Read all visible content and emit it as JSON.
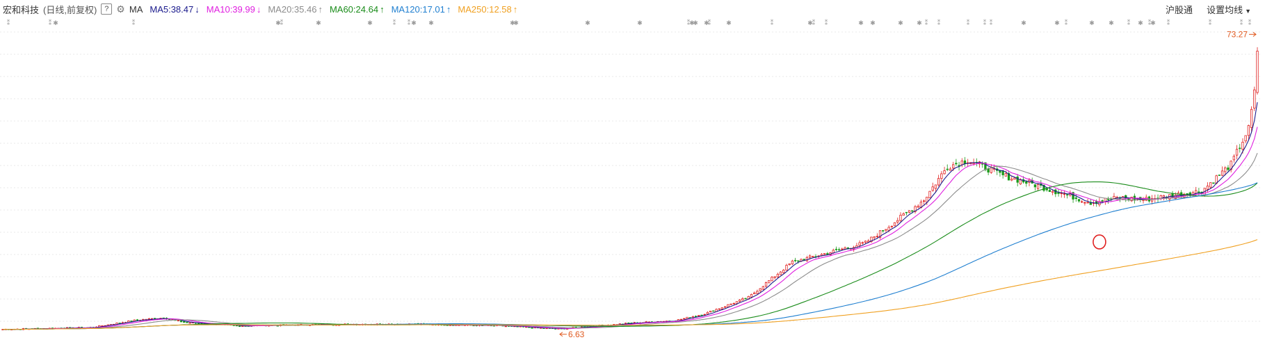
{
  "header": {
    "stock_name": "宏和科技",
    "period_info": "(日线,前复权)",
    "help_icon": "?",
    "settings_icon": "gear-icon",
    "ma_label": "MA",
    "ma_items": [
      {
        "label": "MA5:38.47",
        "color": "#1a1a8c",
        "arrow": "↓"
      },
      {
        "label": "MA10:39.99",
        "color": "#e020e0",
        "arrow": "↓"
      },
      {
        "label": "MA20:35.46",
        "color": "#8c8c8c",
        "arrow": "↑"
      },
      {
        "label": "MA60:24.64",
        "color": "#1a8c1a",
        "arrow": "↑"
      },
      {
        "label": "MA120:17.01",
        "color": "#1f7fd0",
        "arrow": "↑"
      },
      {
        "label": "MA250:12.58",
        "color": "#f0a020",
        "arrow": "↑"
      }
    ]
  },
  "right_menu": {
    "hgt": "沪股通",
    "set_ma": "设置均线"
  },
  "chart_data": {
    "type": "candlestick",
    "max_label": "73.27",
    "min_label": "6.63",
    "price_range": [
      5.5,
      76
    ],
    "colors": {
      "up": "#e02020",
      "down": "#1a9a1a"
    },
    "ma_colors": {
      "ma5": "#1a1a8c",
      "ma10": "#e020e0",
      "ma20": "#8c8c8c",
      "ma60": "#1a8c1a",
      "ma120": "#1f7fd0",
      "ma250": "#f0a020"
    }
  }
}
